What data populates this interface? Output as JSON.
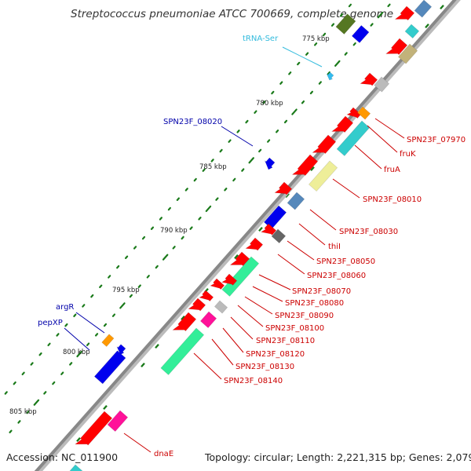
{
  "header": {
    "title": "Streptococcus pneumoniae ATCC 700669, complete genome"
  },
  "footer": {
    "accession": "Accession: NC_011900",
    "summary": "Topology: circular; Length: 2,221,315 bp; Genes: 2,079"
  },
  "scale": {
    "ticks": [
      "775 kbp",
      "780 kbp",
      "785 kbp",
      "790 kbp",
      "795 kbp",
      "800 kbp",
      "805 kbp"
    ]
  },
  "colors": {
    "backbone": "#888888",
    "tick": "#1a7a1a",
    "cds_red": "#ff0000",
    "blue": "#0000ee",
    "teal": "#33cccc",
    "mint": "#33ee99",
    "khaki": "#eeee99",
    "tan": "#c2b27a",
    "steel": "#5588bb",
    "pink": "#ff1199",
    "orange": "#ff9900",
    "olive": "#557722",
    "gray": "#bbbbbb",
    "darkgray": "#666666",
    "cyan_label": "#33bbdd",
    "blue_label": "#0000aa",
    "red_label": "#cc0000"
  },
  "labels": {
    "left": [
      {
        "text": "tRNA-Ser",
        "color": "cyan"
      },
      {
        "text": "SPN23F_08020",
        "color": "blue"
      },
      {
        "text": "argR",
        "color": "blue"
      },
      {
        "text": "pepXP",
        "color": "blue"
      }
    ],
    "right": [
      "SPN23F_07970",
      "fruK",
      "fruA",
      "SPN23F_08010",
      "SPN23F_08030",
      "thiI",
      "SPN23F_08050",
      "SPN23F_08060",
      "SPN23F_08070",
      "SPN23F_08080",
      "SPN23F_08090",
      "SPN23F_08100",
      "SPN23F_08110",
      "SPN23F_08120",
      "SPN23F_08130",
      "SPN23F_08140",
      "dnaE"
    ]
  }
}
